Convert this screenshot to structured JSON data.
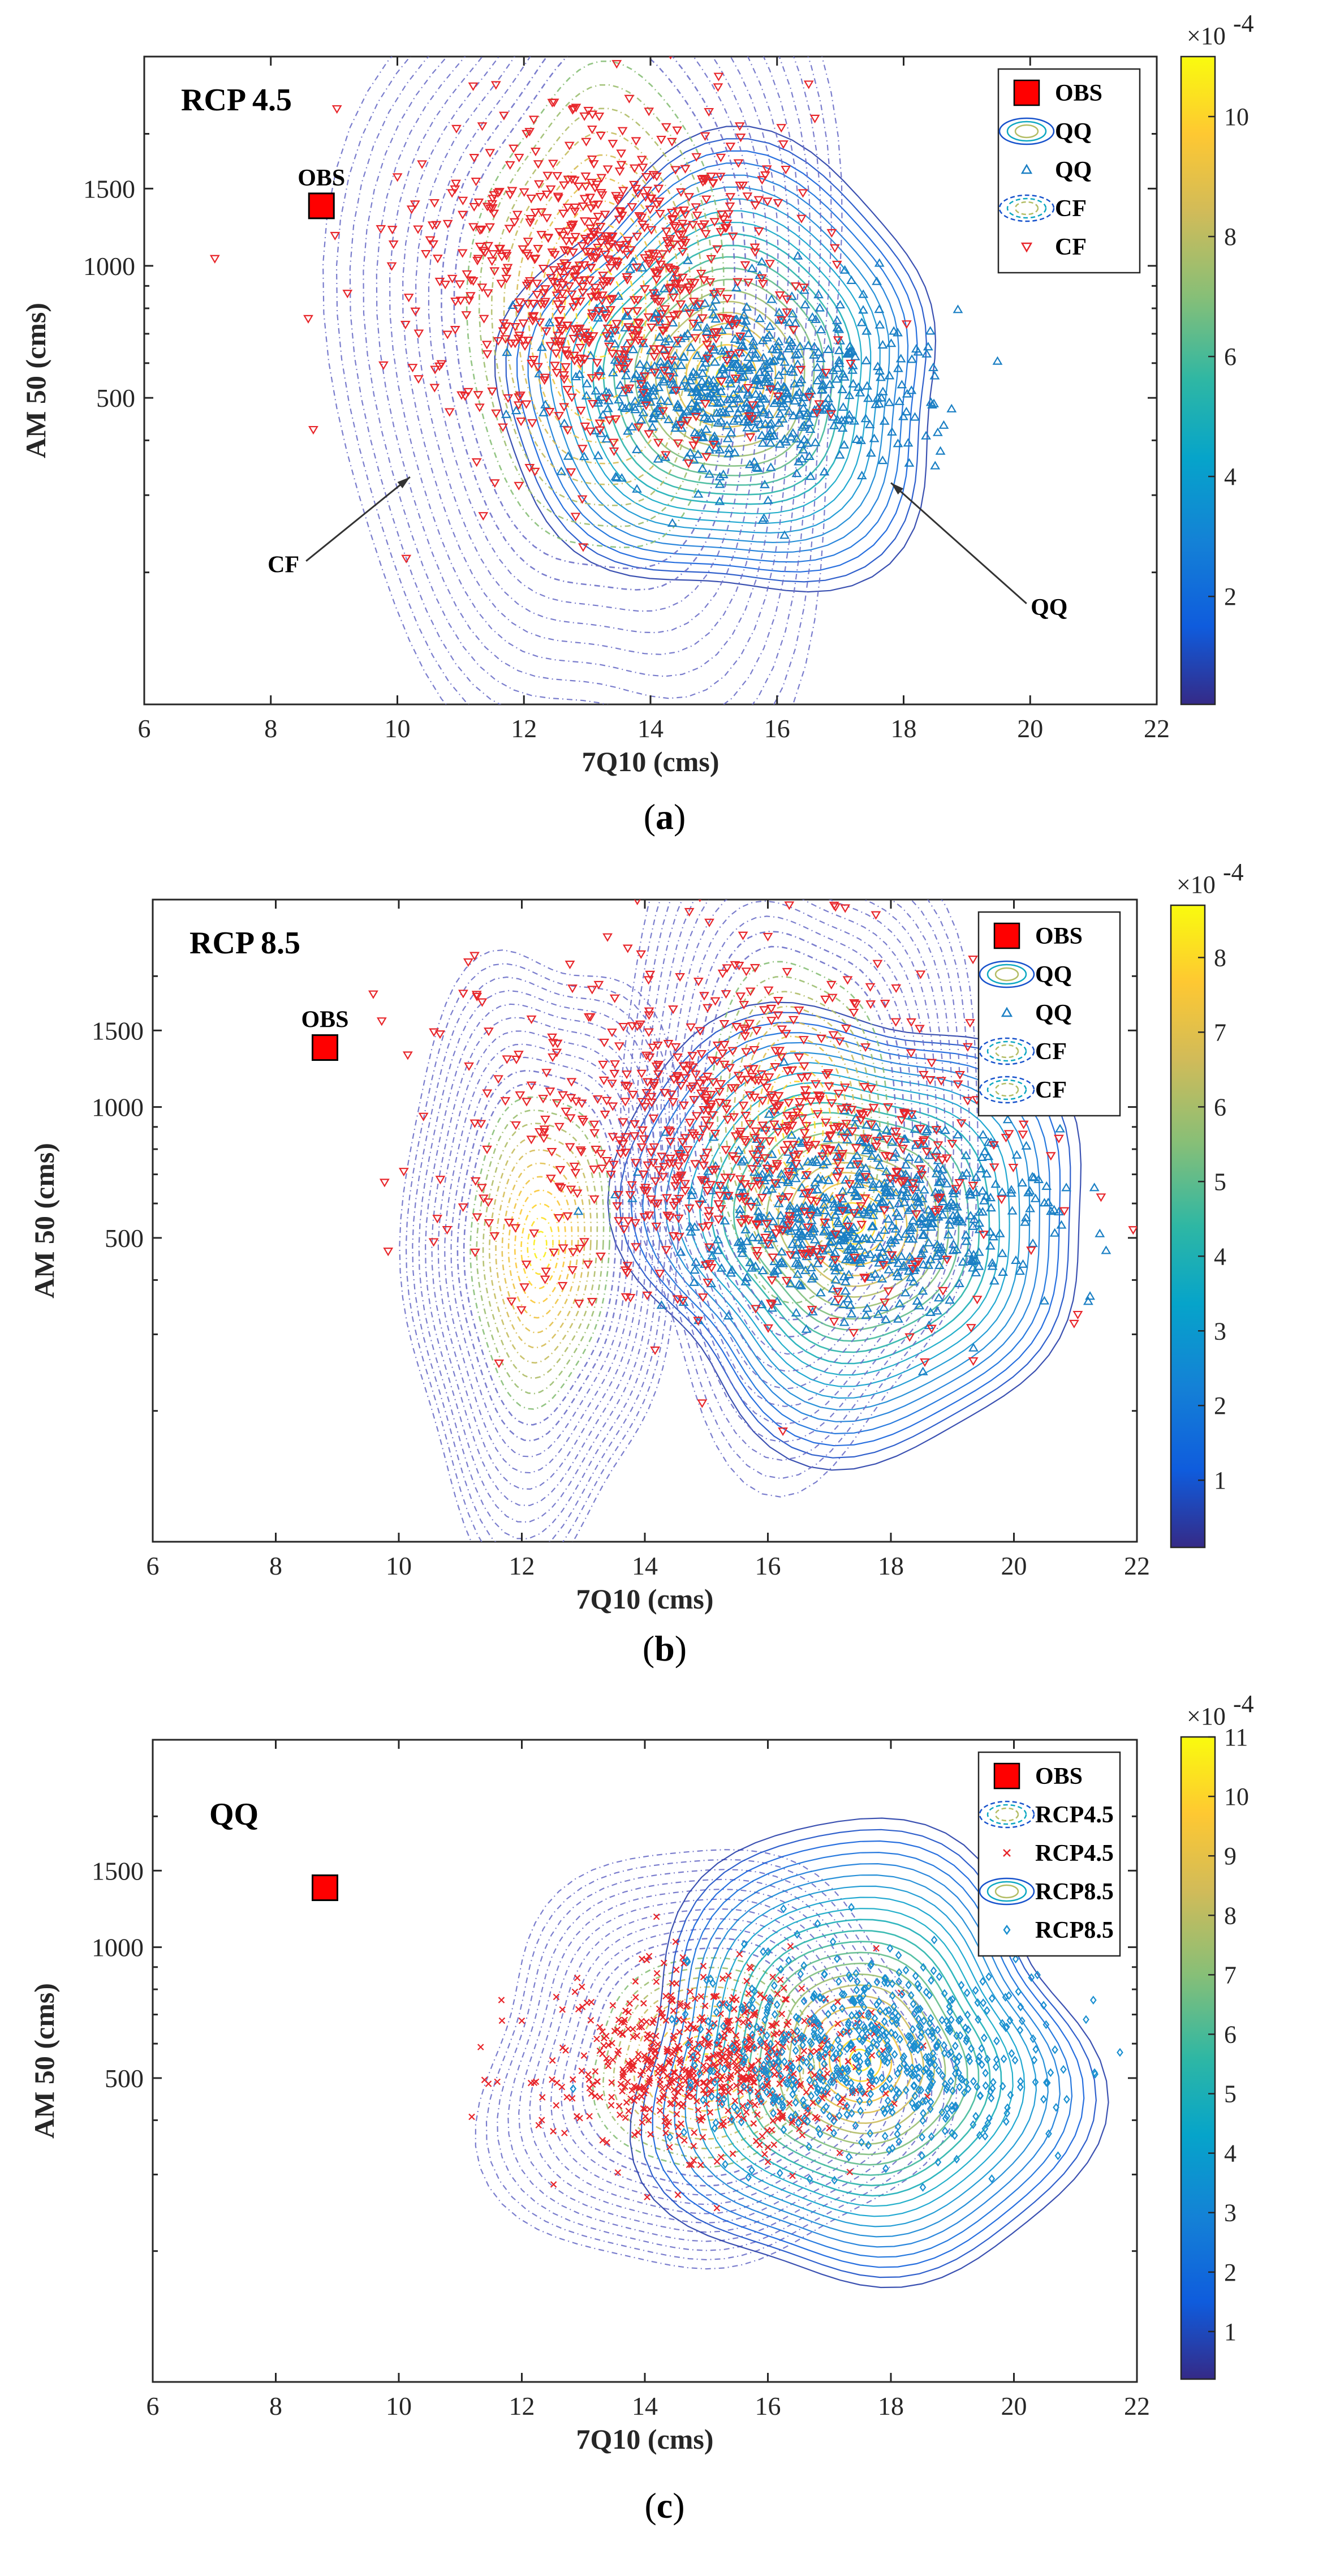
{
  "figure": {
    "colormap_stops": [
      "#352a87",
      "#0f5cdd",
      "#1481d6",
      "#06a4ca",
      "#2eb7a4",
      "#87bf77",
      "#d1bb59",
      "#fec832",
      "#f9fb0e"
    ],
    "obs_color": "#ff0000",
    "cf_color": "#e8252a",
    "qq_color": "#1a7fc4",
    "rcp45_color": "#e8252a",
    "rcp85_color": "#1a8fd0"
  },
  "chart_data": [
    {
      "type": "scatter",
      "panel_title": "RCP 4.5",
      "caption_open": "(",
      "caption_letter": "a",
      "caption_close": ")",
      "xlabel": "7Q10 (cms)",
      "ylabel": "AM 50 (cms)",
      "xlim": [
        6,
        22
      ],
      "ylim": [
        100,
        3000
      ],
      "yscale": "log",
      "xticks": [
        6,
        8,
        10,
        12,
        14,
        16,
        18,
        20,
        22
      ],
      "xtick_labels": [
        "6",
        "8",
        "10",
        "12",
        "14",
        "16",
        "18",
        "20",
        "22"
      ],
      "yticks": [
        500,
        1000,
        1500
      ],
      "ytick_labels": [
        "500",
        "1000",
        "1500"
      ],
      "obs": {
        "x": 8.8,
        "y": 1370,
        "label": "OBS"
      },
      "legend": [
        "OBS",
        "QQ",
        "QQ",
        "CF",
        "CF"
      ],
      "annotations": [
        {
          "text": "CF",
          "x": 8.2,
          "y": 200,
          "arrow_to": [
            10.2,
            330
          ]
        },
        {
          "text": "QQ",
          "x": 20.3,
          "y": 160,
          "arrow_to": [
            17.8,
            320
          ]
        }
      ],
      "colorbar": {
        "exponent": "×10",
        "exponent_power": "-4",
        "min": 0.2,
        "max": 11,
        "ticks": [
          2,
          4,
          6,
          8,
          10
        ],
        "tick_labels": [
          "2",
          "4",
          "6",
          "8",
          "10"
        ]
      },
      "series": [
        {
          "name": "QQ",
          "kind": "kde_contour",
          "style": "solid",
          "center_x": 15.2,
          "center_y": 560,
          "spread_x": 3.6,
          "spread_logy": 0.5
        },
        {
          "name": "QQ",
          "kind": "scatter",
          "marker": "triangle-up",
          "center_x": 15.4,
          "center_y": 540,
          "spread_x": 1.3,
          "spread_logy": 0.17,
          "n": 650
        },
        {
          "name": "CF",
          "kind": "kde_contour",
          "style": "dashed",
          "center_x": 13.2,
          "center_y": 780,
          "spread_x": 3.9,
          "spread_logy": 1.15
        },
        {
          "name": "CF",
          "kind": "scatter",
          "marker": "triangle-down",
          "center_x": 13.2,
          "center_y": 950,
          "spread_x": 1.55,
          "spread_logy": 0.32,
          "n": 720
        }
      ]
    },
    {
      "type": "scatter",
      "panel_title": "RCP 8.5",
      "caption_open": "(",
      "caption_letter": "b",
      "caption_close": ")",
      "xlabel": "7Q10 (cms)",
      "ylabel": "AM 50 (cms)",
      "xlim": [
        6,
        22
      ],
      "ylim": [
        100,
        3000
      ],
      "yscale": "log",
      "xticks": [
        6,
        8,
        10,
        12,
        14,
        16,
        18,
        20,
        22
      ],
      "xtick_labels": [
        "6",
        "8",
        "10",
        "12",
        "14",
        "16",
        "18",
        "20",
        "22"
      ],
      "yticks": [
        500,
        1000,
        1500
      ],
      "ytick_labels": [
        "500",
        "1000",
        "1500"
      ],
      "obs": {
        "x": 8.8,
        "y": 1370,
        "label": "OBS"
      },
      "legend": [
        "OBS",
        "QQ",
        "QQ",
        "CF",
        "CF"
      ],
      "annotations": [],
      "colorbar": {
        "exponent": "×10",
        "exponent_power": "-4",
        "min": 0.1,
        "max": 8.7,
        "ticks": [
          1,
          2,
          3,
          4,
          5,
          6,
          7,
          8
        ],
        "tick_labels": [
          "1",
          "2",
          "3",
          "4",
          "5",
          "6",
          "7",
          "8"
        ]
      },
      "series": [
        {
          "name": "QQ",
          "kind": "kde_contour",
          "style": "solid",
          "center_x": 17.4,
          "center_y": 540,
          "spread_x": 3.8,
          "spread_logy": 0.52
        },
        {
          "name": "QQ",
          "kind": "scatter",
          "marker": "triangle-up",
          "center_x": 17.5,
          "center_y": 560,
          "spread_x": 1.4,
          "spread_logy": 0.18,
          "n": 650
        },
        {
          "name": "CF",
          "kind": "kde_contour",
          "style": "dashed",
          "center_x": 12.3,
          "center_y": 480,
          "spread_x": 2.3,
          "spread_logy": 0.7
        },
        {
          "name": "CF",
          "kind": "kde_contour",
          "style": "dashed",
          "center_x": 16.5,
          "center_y": 900,
          "spread_x": 3.0,
          "spread_logy": 0.75
        },
        {
          "name": "CF",
          "kind": "scatter",
          "marker": "triangle-down",
          "center_x": 15.6,
          "center_y": 880,
          "spread_x": 2.2,
          "spread_logy": 0.34,
          "n": 720
        }
      ]
    },
    {
      "type": "scatter",
      "panel_title": "QQ",
      "caption_open": "(",
      "caption_letter": "c",
      "caption_close": ")",
      "xlabel": "7Q10 (cms)",
      "ylabel": "AM 50 (cms)",
      "xlim": [
        6,
        22
      ],
      "ylim": [
        100,
        3000
      ],
      "yscale": "log",
      "xticks": [
        6,
        8,
        10,
        12,
        14,
        16,
        18,
        20,
        22
      ],
      "xtick_labels": [
        "6",
        "8",
        "10",
        "12",
        "14",
        "16",
        "18",
        "20",
        "22"
      ],
      "yticks": [
        500,
        1000,
        1500
      ],
      "ytick_labels": [
        "500",
        "1000",
        "1500"
      ],
      "obs": {
        "x": 8.8,
        "y": 1370,
        "label": ""
      },
      "legend": [
        "OBS",
        "RCP4.5",
        "RCP4.5",
        "RCP8.5",
        "RCP8.5"
      ],
      "annotations": [],
      "colorbar": {
        "exponent": "×10",
        "exponent_power": "-4",
        "min": 0.2,
        "max": 11,
        "ticks": [
          1,
          2,
          3,
          4,
          5,
          6,
          7,
          8,
          9,
          10,
          11
        ],
        "tick_labels": [
          "1",
          "2",
          "3",
          "4",
          "5",
          "6",
          "7",
          "8",
          "9",
          "10",
          "11"
        ]
      },
      "series": [
        {
          "name": "RCP4.5",
          "kind": "kde_contour",
          "style": "dashed",
          "center_x": 15.0,
          "center_y": 540,
          "spread_x": 3.6,
          "spread_logy": 0.5
        },
        {
          "name": "RCP4.5",
          "kind": "scatter",
          "marker": "x",
          "center_x": 15.0,
          "center_y": 540,
          "spread_x": 1.3,
          "spread_logy": 0.17,
          "n": 650
        },
        {
          "name": "RCP8.5",
          "kind": "kde_contour",
          "style": "solid",
          "center_x": 17.5,
          "center_y": 550,
          "spread_x": 3.8,
          "spread_logy": 0.52
        },
        {
          "name": "RCP8.5",
          "kind": "scatter",
          "marker": "diamond",
          "center_x": 17.6,
          "center_y": 570,
          "spread_x": 1.4,
          "spread_logy": 0.18,
          "n": 650
        }
      ]
    }
  ]
}
